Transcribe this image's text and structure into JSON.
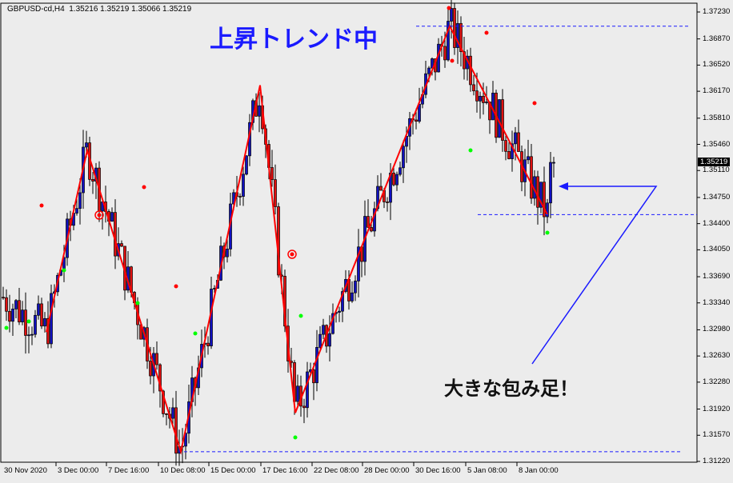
{
  "header": {
    "symbol": "GBPUSD-cd,H4",
    "ohlc": "1.35216 1.35219 1.35066 1.35219"
  },
  "price_axis": {
    "ticks": [
      "1.37230",
      "1.36870",
      "1.36520",
      "1.36170",
      "1.35810",
      "1.35460",
      "1.35110",
      "1.34750",
      "1.34400",
      "1.34050",
      "1.33690",
      "1.33340",
      "1.32980",
      "1.32630",
      "1.32280",
      "1.31920",
      "1.31570",
      "1.31220"
    ],
    "current": "1.35219"
  },
  "time_axis": {
    "ticks": [
      "30 Nov 2020",
      "3 Dec 00:00",
      "7 Dec 16:00",
      "10 Dec 08:00",
      "15 Dec 00:00",
      "17 Dec 16:00",
      "22 Dec 08:00",
      "28 Dec 00:00",
      "30 Dec 16:00",
      "5 Jan 08:00",
      "8 Jan 00:00"
    ]
  },
  "annotations": {
    "trend": "上昇トレンド中",
    "engulfing": "大きな包み足！"
  },
  "colors": {
    "background": "#ececec",
    "bull": "#1010c0",
    "bear": "#e01010",
    "zigzag": "#ff0000",
    "annotation": "#1a1aff",
    "fractal_up": "#ff0000",
    "fractal_down": "#00ff00"
  },
  "zigzag": [
    1.3295,
    1.3538,
    1.3135,
    1.3625,
    1.3187,
    1.3704,
    1.3452
  ],
  "levels": [
    1.3704,
    1.3452,
    1.3135
  ]
}
